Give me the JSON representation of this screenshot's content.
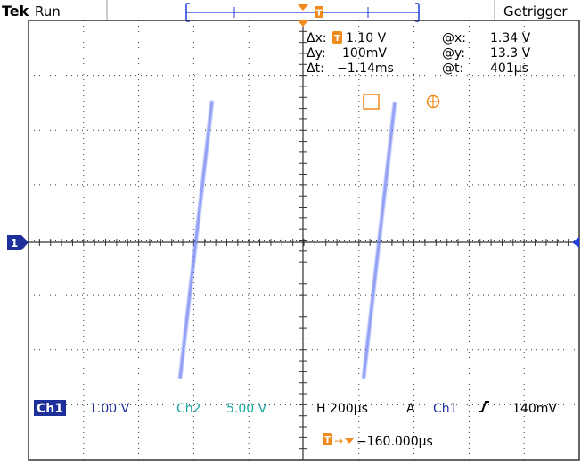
{
  "header": {
    "brand": "Tek",
    "run_state": "Run",
    "trigger_status": "Getrigger"
  },
  "cursor_readout": {
    "delta_x_label": "Δx:",
    "delta_x_value": "1.10 V",
    "at_x_label": "@x:",
    "at_x_value": "1.34 V",
    "delta_y_label": "Δy:",
    "delta_y_value": "100mV",
    "at_y_label": "@y:",
    "at_y_value": "13.3 V",
    "delta_t_label": "Δt:",
    "delta_t_value": "−1.14ms",
    "at_t_label": "@t:",
    "at_t_value": "401µs"
  },
  "status_bar": {
    "ch1_label": "Ch1",
    "ch1_scale": "1.00 V",
    "ch2_label": "Ch2",
    "ch2_scale": "5.00 V",
    "horizontal": "H 200µs",
    "trigger_mode": "A",
    "trigger_source": "Ch1",
    "trigger_level": "140mV",
    "trigger_offset": "−160.000µs"
  },
  "markers": {
    "channel_marker": "1",
    "trigger_marker": "T"
  },
  "colors": {
    "trace": "#1f3fdc",
    "accent": "#f08a1c",
    "ch1_bg": "#1c2f9a",
    "ch2": "#1aa5a0",
    "grid": "#333333"
  }
}
